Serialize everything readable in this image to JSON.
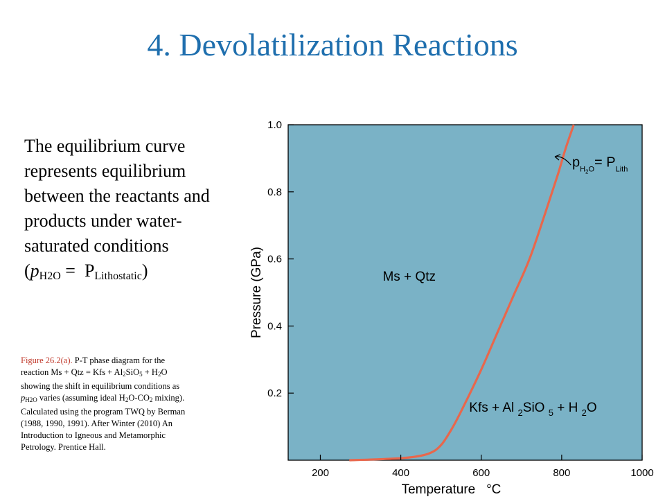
{
  "slide": {
    "title": "4. Devolatilization Reactions",
    "body_lines": [
      "The equilibrium curve",
      "represents equilibrium",
      "between the reactants and",
      "products under water-",
      "saturated conditions"
    ],
    "body_formula": {
      "open": "(",
      "p": "p",
      "p_sub": "H2O",
      "eq": " =  P",
      "P_sub": "Lithostatic",
      "close": ")"
    },
    "caption": {
      "fig_label": "Figure 26.2(a).",
      "l1": " P-T phase diagram for the",
      "l2a": "reaction Ms + Qtz = Kfs + Al",
      "l2s1": "2",
      "l2b": "SiO",
      "l2s2": "5",
      "l2c": " + H",
      "l2s3": "2",
      "l2d": "O",
      "l3": "showing the shift in equilibrium  conditions as",
      "l4p": "p",
      "l4s": "H2O",
      "l4a": " varies (assuming ideal H",
      "l4s2": "2",
      "l4b": "O-CO",
      "l4s3": "2",
      "l4c": " mixing).",
      "l5": "Calculated using the program TWQ by Berman",
      "l6": "(1988, 1990, 1991). After Winter (2010) An",
      "l7": "Introduction to Igneous and Metamorphic",
      "l8": "Petrology. Prentice Hall."
    }
  },
  "chart_data": {
    "type": "line",
    "xlabel": "Temperature   °C",
    "ylabel": "Pressure (GPa)",
    "xlim": [
      120,
      1000
    ],
    "ylim": [
      0,
      1.0
    ],
    "x_ticks": [
      "200",
      "400",
      "600",
      "800",
      "1000"
    ],
    "y_ticks": [
      "0.2",
      "0.4",
      "0.6",
      "0.8",
      "1.0"
    ],
    "grid": false,
    "series": [
      {
        "x": [
          272,
          350,
          420,
          470,
          500,
          530,
          560,
          600,
          640,
          680,
          720,
          760,
          790,
          810,
          830
        ],
        "y": [
          0.0,
          0.003,
          0.008,
          0.02,
          0.045,
          0.1,
          0.17,
          0.27,
          0.38,
          0.49,
          0.6,
          0.74,
          0.85,
          0.93,
          1.0
        ]
      }
    ],
    "annotations": {
      "curve_label_main": "p",
      "curve_label_sub1": "H",
      "curve_label_sub2": "2",
      "curve_label_sub3": "O",
      "curve_label_eq": "= P",
      "curve_label_sub4": "Lith",
      "field_upper": "Ms + Qtz",
      "field_lower_a": "Kfs + Al ",
      "field_lower_s1": "2",
      "field_lower_b": "SiO ",
      "field_lower_s2": "5",
      "field_lower_c": " + H ",
      "field_lower_s3": "2",
      "field_lower_d": "O"
    },
    "colors": {
      "plot_background": "#7ab2c6",
      "curve": "#e8674c",
      "title": "#1f6fae",
      "caption_label": "#c0392b"
    }
  }
}
